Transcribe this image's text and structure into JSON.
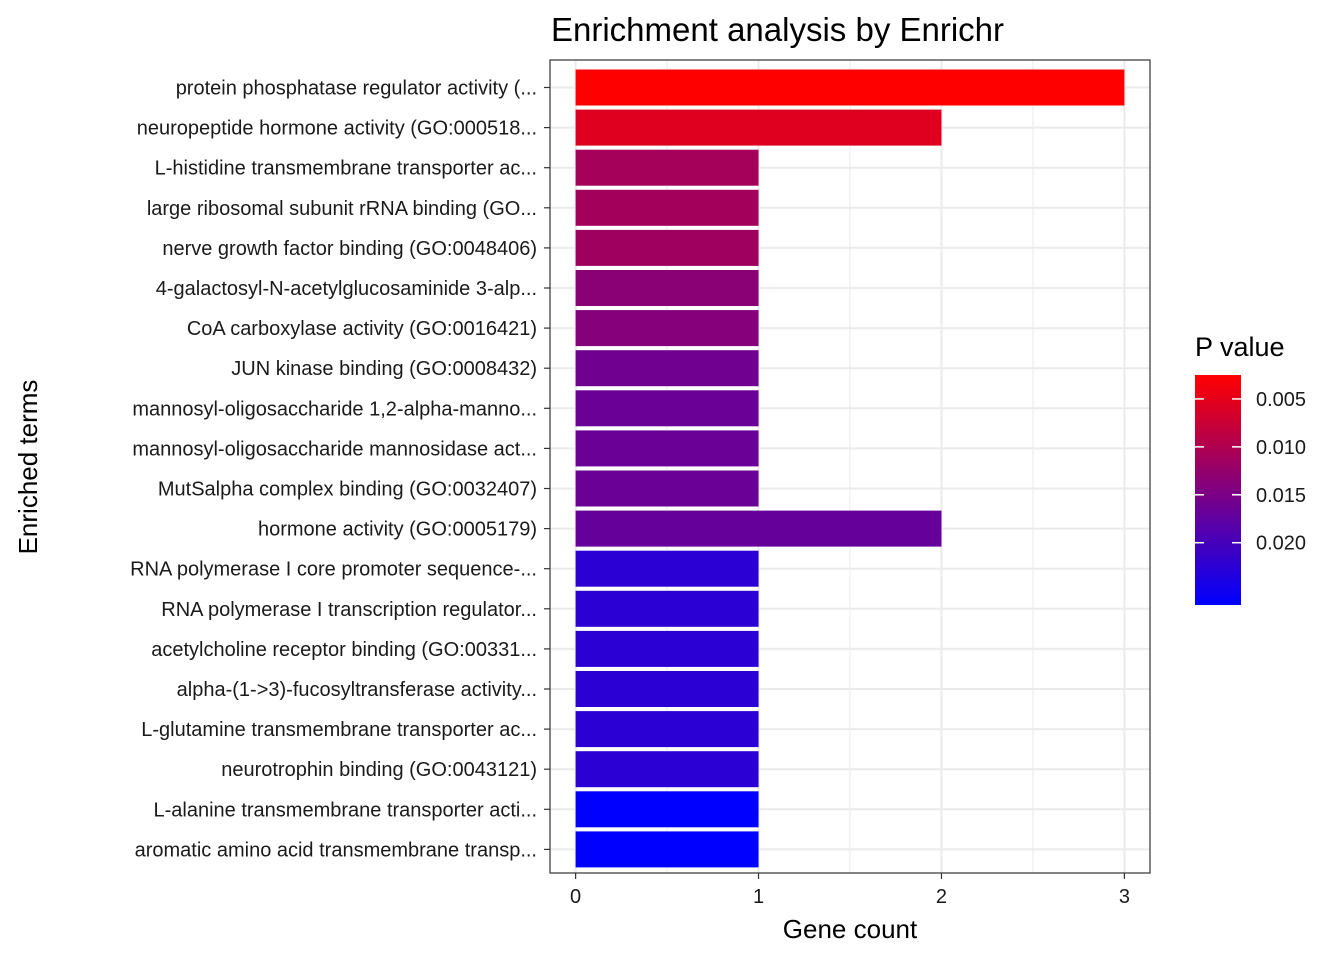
{
  "chart_data": {
    "type": "bar",
    "orientation": "horizontal",
    "title": "Enrichment analysis by Enrichr",
    "xlabel": "Gene count",
    "ylabel": "Enriched terms",
    "xlim": [
      0,
      3
    ],
    "xticks": [
      0,
      1,
      2,
      3
    ],
    "categories": [
      "protein phosphatase regulator activity (...",
      "neuropeptide hormone activity (GO:000518...",
      "L-histidine transmembrane transporter ac...",
      "large ribosomal subunit rRNA binding (GO...",
      "nerve growth factor binding (GO:0048406)",
      "4-galactosyl-N-acetylglucosaminide 3-alp...",
      "CoA carboxylase activity (GO:0016421)",
      "JUN kinase binding (GO:0008432)",
      "mannosyl-oligosaccharide 1,2-alpha-manno...",
      "mannosyl-oligosaccharide mannosidase act...",
      "MutSalpha complex binding (GO:0032407)",
      "hormone activity (GO:0005179)",
      "RNA polymerase I core promoter sequence-...",
      "RNA polymerase I transcription regulator...",
      "acetylcholine receptor binding (GO:00331...",
      "alpha-(1->3)-fucosyltransferase activity...",
      "L-glutamine transmembrane transporter ac...",
      "neurotrophin binding (GO:0043121)",
      "L-alanine transmembrane transporter acti...",
      "aromatic amino acid transmembrane transp..."
    ],
    "values": [
      3,
      2,
      1,
      1,
      1,
      1,
      1,
      1,
      1,
      1,
      1,
      2,
      1,
      1,
      1,
      1,
      1,
      1,
      1,
      1
    ],
    "pvalues": [
      0.0025,
      0.0055,
      0.011,
      0.0112,
      0.0115,
      0.0135,
      0.014,
      0.016,
      0.0165,
      0.0165,
      0.0165,
      0.017,
      0.0225,
      0.0225,
      0.0225,
      0.0225,
      0.0225,
      0.0225,
      0.0265,
      0.0265
    ],
    "legend": {
      "title": "P value",
      "position": "right",
      "range": [
        0.0025,
        0.0265
      ],
      "ticks": [
        0.005,
        0.01,
        0.015,
        0.02
      ],
      "tick_labels": [
        "0.005",
        "0.010",
        "0.015",
        "0.020"
      ],
      "low_color": "#ff0000",
      "high_color": "#0000ff"
    },
    "grid": true,
    "theme": "bw"
  }
}
